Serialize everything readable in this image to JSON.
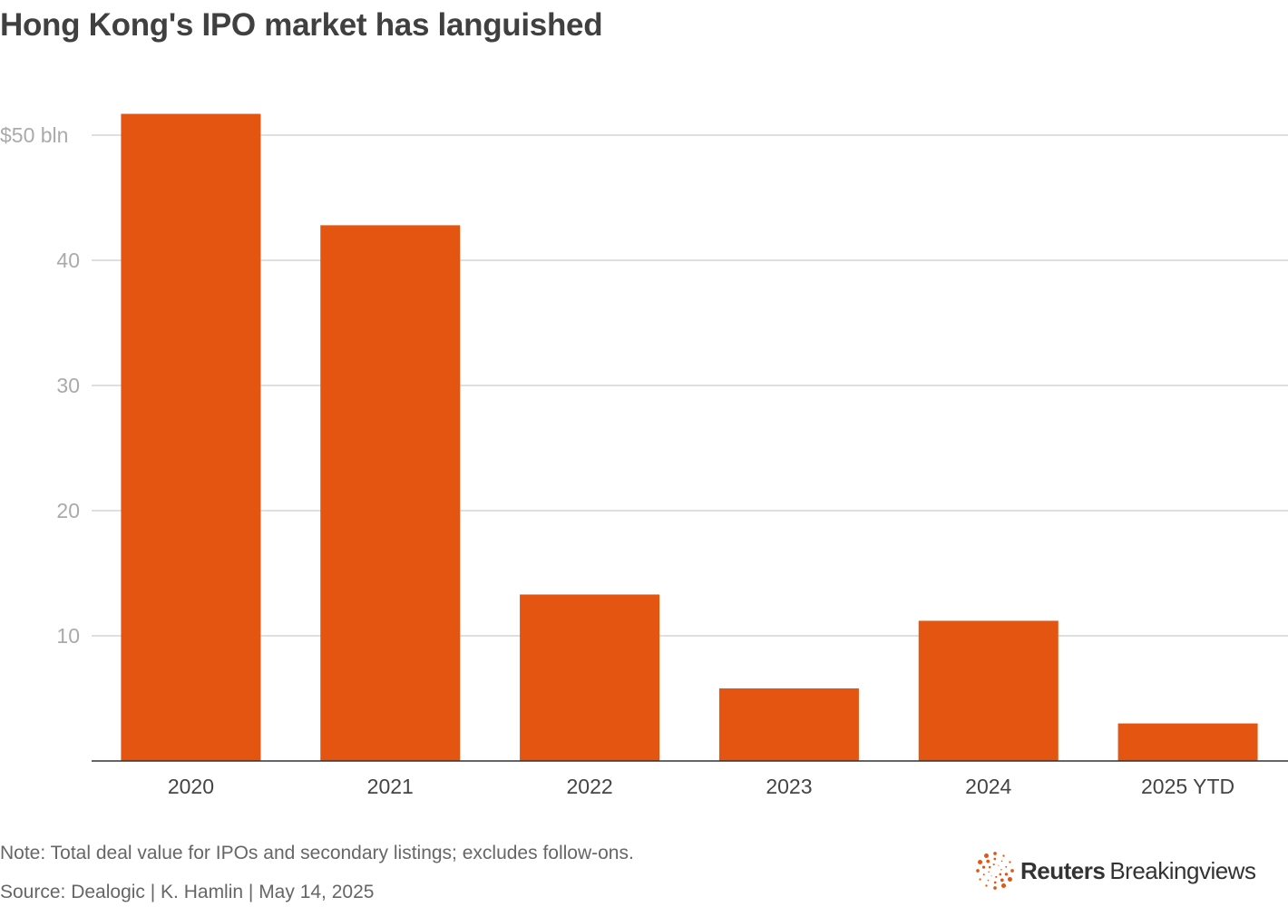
{
  "title": "Hong Kong's IPO market has languished",
  "note": "Note: Total deal value for IPOs and secondary listings; excludes follow-ons.",
  "source": "Source: Dealogic | K. Hamlin | May 14, 2025",
  "logo": {
    "brand": "Reuters",
    "product": "Breakingviews"
  },
  "colors": {
    "bar": "#e35510",
    "grid": "#cccccc",
    "axis": "#333333",
    "tick_label": "#aaaaaa"
  },
  "chart_data": {
    "type": "bar",
    "title": "Hong Kong's IPO market has languished",
    "categories": [
      "2020",
      "2021",
      "2022",
      "2023",
      "2024",
      "2025 YTD"
    ],
    "values": [
      51.7,
      42.8,
      13.3,
      5.8,
      11.2,
      3.0
    ],
    "ylim": [
      0,
      50
    ],
    "yticks": [
      10,
      20,
      30,
      40,
      50
    ],
    "ytick_labels": [
      "10",
      "20",
      "30",
      "40",
      "$50 bln"
    ],
    "grid": true,
    "xlabel": "",
    "ylabel": ""
  }
}
